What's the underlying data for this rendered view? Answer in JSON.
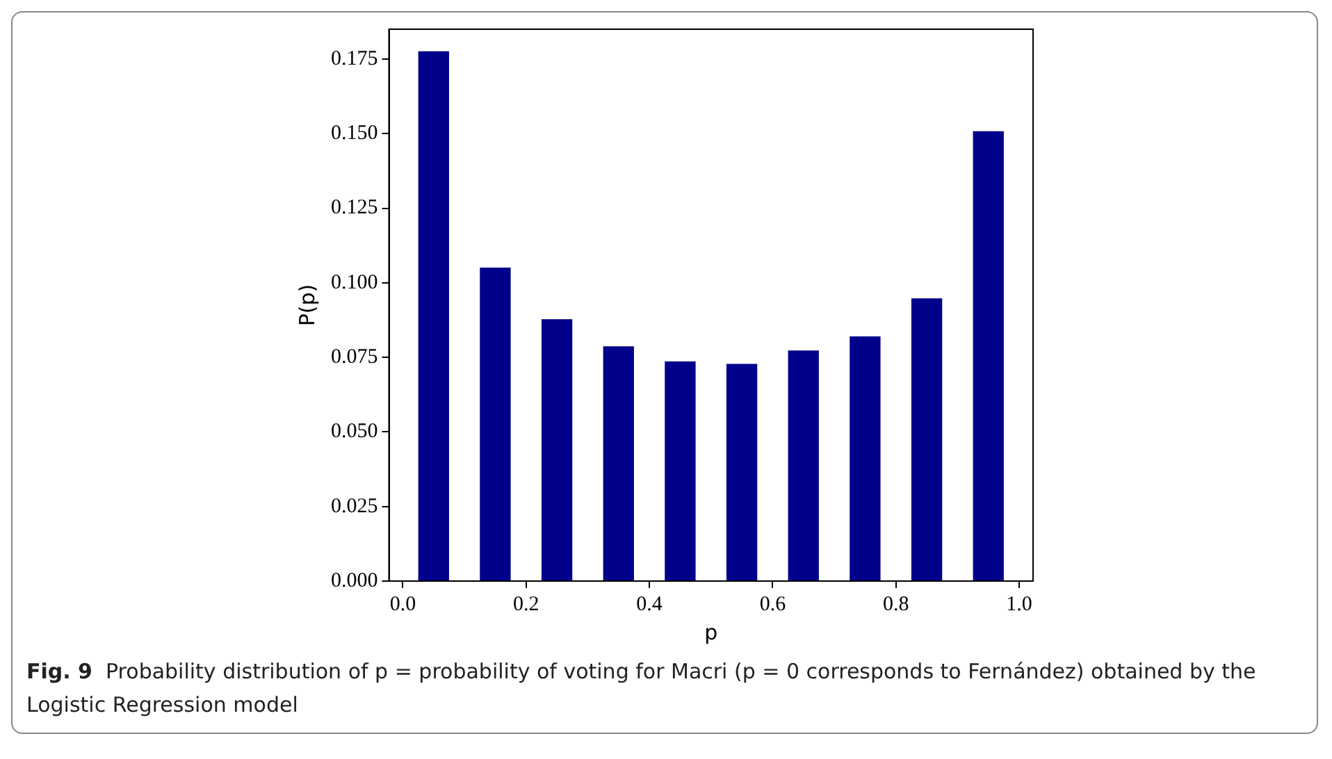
{
  "chart_data": {
    "type": "histogram",
    "xlabel": "p",
    "ylabel": "P(p)",
    "bins": [
      0,
      0.1,
      0.2,
      0.3,
      0.4,
      0.5,
      0.6,
      0.7,
      0.8,
      0.9,
      1.0
    ],
    "values": [
      0.1776,
      0.1051,
      0.0878,
      0.0787,
      0.0736,
      0.0728,
      0.0773,
      0.082,
      0.0948,
      0.1508
    ],
    "color": "#00008b",
    "xlim": [
      -0.0225,
      1.0225
    ],
    "xticks": [
      {
        "value": 0,
        "label": "0.0"
      },
      {
        "value": 0.2,
        "label": "0.2"
      },
      {
        "value": 0.4,
        "label": "0.4"
      },
      {
        "value": 0.6,
        "label": "0.6"
      },
      {
        "value": 0.8,
        "label": "0.8"
      },
      {
        "value": 1,
        "label": "1.0"
      }
    ],
    "ylim": [
      0,
      0.185
    ],
    "yticks": [
      {
        "value": 0,
        "label": "0.000"
      },
      {
        "value": 0.025,
        "label": "0.025"
      },
      {
        "value": 0.05,
        "label": "0.050"
      },
      {
        "value": 0.075,
        "label": "0.075"
      },
      {
        "value": 0.1,
        "label": "0.100"
      },
      {
        "value": 0.125,
        "label": "0.125"
      },
      {
        "value": 0.15,
        "label": "0.150"
      },
      {
        "value": 0.175,
        "label": "0.175"
      }
    ],
    "grid": false,
    "legend": false,
    "annotations": [
      "Fig. 9",
      "Probability distribution of p = probability of voting for Macri (p = 0 corresponds to Fernández) obtained by the Logistic Regression model"
    ]
  }
}
